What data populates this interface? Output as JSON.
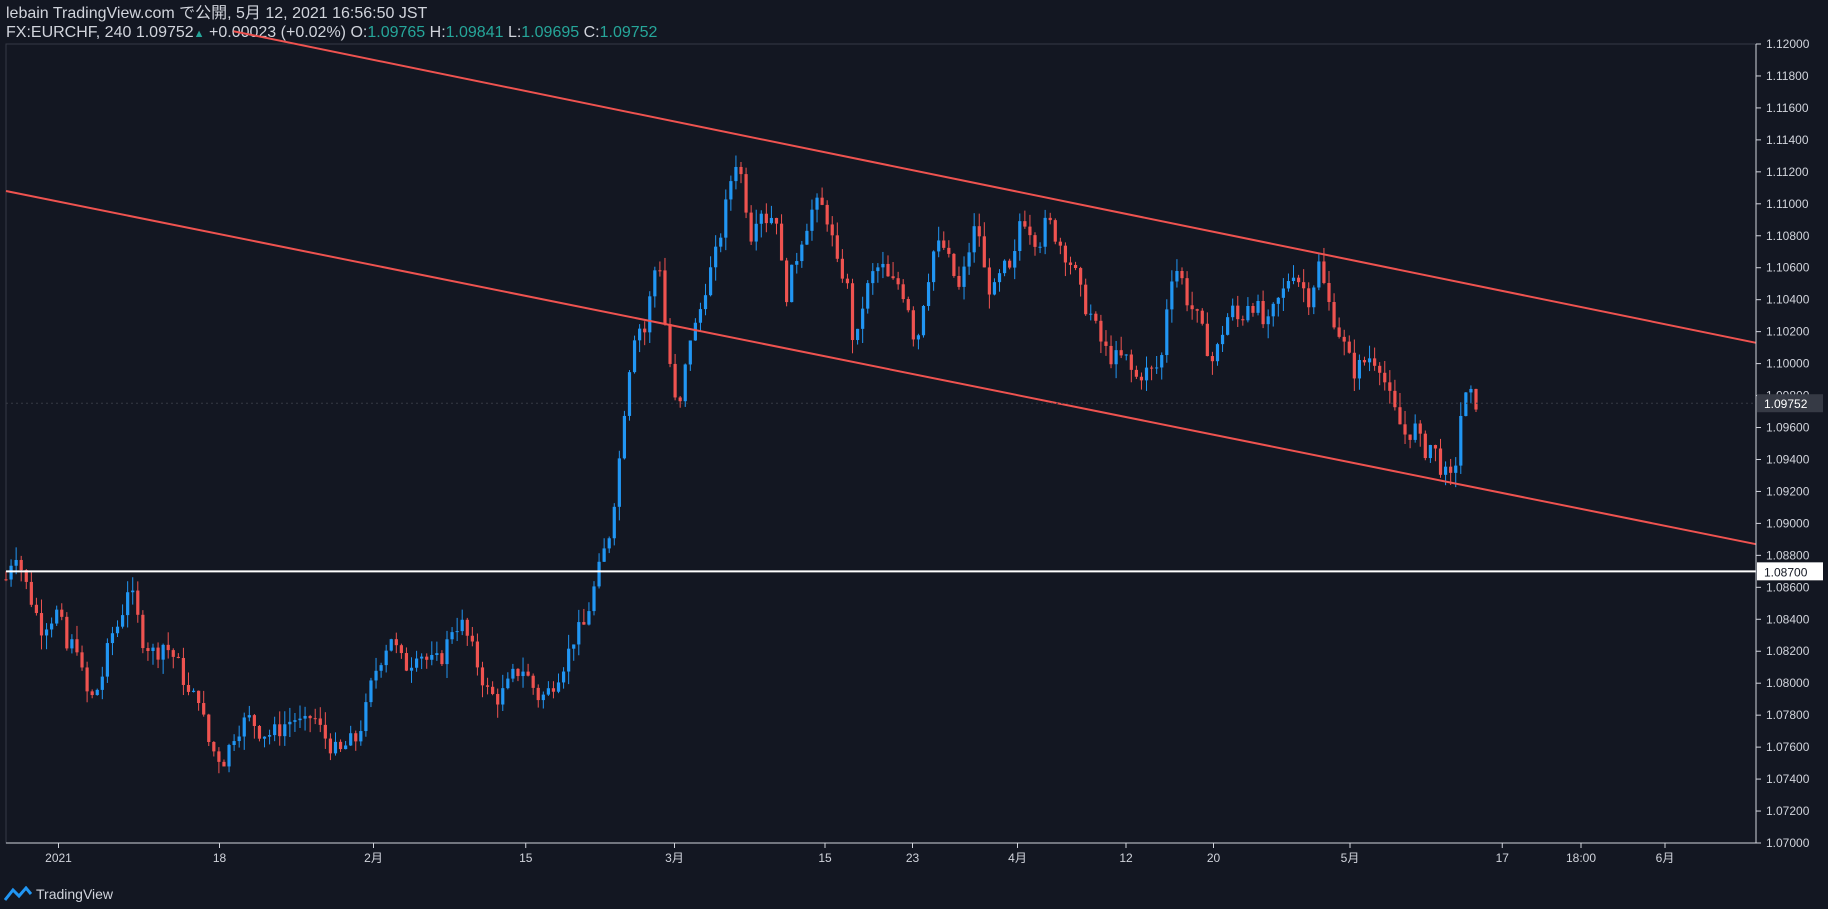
{
  "header": {
    "line1": "lebain TradingView.com で公開, 5月 12, 2021 16:56:50 JST",
    "symbol": "FX:EURCHF, 240",
    "last": "1.09752",
    "change": "+0.00023 (+0.02%)",
    "o_label": "O:",
    "o": "1.09765",
    "h_label": "H:",
    "h": "1.09841",
    "l_label": "L:",
    "l": "1.09695",
    "c_label": "C:",
    "c": "1.09752"
  },
  "footer": {
    "brand": "TradingView"
  },
  "chart_data": {
    "type": "candlestick",
    "ylim": [
      1.07,
      1.12
    ],
    "y_ticks": [
      1.07,
      1.072,
      1.074,
      1.076,
      1.078,
      1.08,
      1.082,
      1.084,
      1.086,
      1.088,
      1.09,
      1.092,
      1.094,
      1.096,
      1.098,
      1.1,
      1.102,
      1.104,
      1.106,
      1.108,
      1.11,
      1.112,
      1.114,
      1.116,
      1.118,
      1.12
    ],
    "y_tick_labels": [
      "1.07000",
      "1.07200",
      "1.07400",
      "1.07600",
      "1.07800",
      "1.08000",
      "1.08200",
      "1.08400",
      "1.08600",
      "1.08800",
      "1.09000",
      "1.09200",
      "1.09400",
      "1.09600",
      "1.09800",
      "1.10000",
      "1.10200",
      "1.10400",
      "1.10600",
      "1.10800",
      "1.11000",
      "1.11200",
      "1.11400",
      "1.11600",
      "1.11800",
      "1.12000"
    ],
    "x_ticks": [
      {
        "label": "2021",
        "t": 0.03
      },
      {
        "label": "18",
        "t": 0.122
      },
      {
        "label": "2月",
        "t": 0.21
      },
      {
        "label": "15",
        "t": 0.297
      },
      {
        "label": "3月",
        "t": 0.382
      },
      {
        "label": "15",
        "t": 0.468
      },
      {
        "label": "23",
        "t": 0.518
      },
      {
        "label": "4月",
        "t": 0.578
      },
      {
        "label": "12",
        "t": 0.64
      },
      {
        "label": "20",
        "t": 0.69
      },
      {
        "label": "5月",
        "t": 0.768
      },
      {
        "label": "17",
        "t": 0.855
      },
      {
        "label": "18:00",
        "t": 0.9
      },
      {
        "label": "6月",
        "t": 0.948
      }
    ],
    "last_price": 1.09752,
    "last_price_label": "1.09752",
    "horizontal_line": {
      "price": 1.087,
      "label": "1.08700",
      "color": "#ffffff"
    },
    "channel_lines": [
      {
        "color": "#ef5350",
        "from": [
          0.13,
          1.1208
        ],
        "to": [
          1.0,
          1.1013
        ]
      },
      {
        "color": "#ef5350",
        "from": [
          0.0,
          1.1108
        ],
        "to": [
          1.0,
          1.0887
        ]
      }
    ],
    "up_color": "#2196f3",
    "down_color": "#ef5350",
    "path": [
      [
        0.0,
        1.0865
      ],
      [
        0.005,
        1.0885
      ],
      [
        0.012,
        1.086
      ],
      [
        0.02,
        1.0835
      ],
      [
        0.03,
        1.0845
      ],
      [
        0.035,
        1.082
      ],
      [
        0.04,
        1.0828
      ],
      [
        0.045,
        1.0795
      ],
      [
        0.05,
        1.079
      ],
      [
        0.055,
        1.0805
      ],
      [
        0.06,
        1.083
      ],
      [
        0.065,
        1.0838
      ],
      [
        0.07,
        1.0862
      ],
      [
        0.073,
        1.085
      ],
      [
        0.078,
        1.0828
      ],
      [
        0.085,
        1.0818
      ],
      [
        0.09,
        1.0825
      ],
      [
        0.095,
        1.0818
      ],
      [
        0.1,
        1.0808
      ],
      [
        0.105,
        1.079
      ],
      [
        0.11,
        1.0793
      ],
      [
        0.115,
        1.0765
      ],
      [
        0.12,
        1.0755
      ],
      [
        0.125,
        1.0752
      ],
      [
        0.13,
        1.0768
      ],
      [
        0.135,
        1.0775
      ],
      [
        0.14,
        1.0778
      ],
      [
        0.145,
        1.077
      ],
      [
        0.15,
        1.0768
      ],
      [
        0.155,
        1.077
      ],
      [
        0.16,
        1.0775
      ],
      [
        0.165,
        1.0778
      ],
      [
        0.17,
        1.0772
      ],
      [
        0.175,
        1.0781
      ],
      [
        0.18,
        1.077
      ],
      [
        0.185,
        1.0762
      ],
      [
        0.19,
        1.0755
      ],
      [
        0.195,
        1.0762
      ],
      [
        0.2,
        1.0765
      ],
      [
        0.205,
        1.078
      ],
      [
        0.21,
        1.0805
      ],
      [
        0.215,
        1.0818
      ],
      [
        0.22,
        1.083
      ],
      [
        0.225,
        1.0815
      ],
      [
        0.23,
        1.081
      ],
      [
        0.235,
        1.0822
      ],
      [
        0.24,
        1.0815
      ],
      [
        0.245,
        1.0812
      ],
      [
        0.25,
        1.0818
      ],
      [
        0.255,
        1.0835
      ],
      [
        0.26,
        1.0838
      ],
      [
        0.265,
        1.0825
      ],
      [
        0.27,
        1.081
      ],
      [
        0.275,
        1.0795
      ],
      [
        0.28,
        1.079
      ],
      [
        0.285,
        1.0795
      ],
      [
        0.29,
        1.0805
      ],
      [
        0.295,
        1.081
      ],
      [
        0.3,
        1.08
      ],
      [
        0.305,
        1.079
      ],
      [
        0.31,
        1.0795
      ],
      [
        0.315,
        1.0805
      ],
      [
        0.32,
        1.0815
      ],
      [
        0.325,
        1.083
      ],
      [
        0.33,
        1.0835
      ],
      [
        0.335,
        1.0855
      ],
      [
        0.34,
        1.0875
      ],
      [
        0.345,
        1.0895
      ],
      [
        0.35,
        1.0935
      ],
      [
        0.355,
        1.099
      ],
      [
        0.36,
        1.1025
      ],
      [
        0.365,
        1.102
      ],
      [
        0.37,
        1.1055
      ],
      [
        0.373,
        1.107
      ],
      [
        0.376,
        1.103
      ],
      [
        0.38,
        1.0995
      ],
      [
        0.383,
        1.097
      ],
      [
        0.386,
        1.0975
      ],
      [
        0.39,
        1.1015
      ],
      [
        0.395,
        1.1025
      ],
      [
        0.4,
        1.105
      ],
      [
        0.405,
        1.1065
      ],
      [
        0.41,
        1.109
      ],
      [
        0.415,
        1.112
      ],
      [
        0.418,
        1.113
      ],
      [
        0.422,
        1.1105
      ],
      [
        0.426,
        1.108
      ],
      [
        0.43,
        1.11
      ],
      [
        0.435,
        1.109
      ],
      [
        0.44,
        1.1095
      ],
      [
        0.445,
        1.104
      ],
      [
        0.45,
        1.106
      ],
      [
        0.455,
        1.108
      ],
      [
        0.46,
        1.1095
      ],
      [
        0.465,
        1.11
      ],
      [
        0.47,
        1.109
      ],
      [
        0.475,
        1.106
      ],
      [
        0.48,
        1.1055
      ],
      [
        0.485,
        1.1005
      ],
      [
        0.49,
        1.104
      ],
      [
        0.495,
        1.1055
      ],
      [
        0.5,
        1.1062
      ],
      [
        0.505,
        1.105
      ],
      [
        0.51,
        1.105
      ],
      [
        0.515,
        1.104
      ],
      [
        0.52,
        1.101
      ],
      [
        0.525,
        1.1045
      ],
      [
        0.53,
        1.107
      ],
      [
        0.535,
        1.1075
      ],
      [
        0.54,
        1.106
      ],
      [
        0.545,
        1.1045
      ],
      [
        0.55,
        1.107
      ],
      [
        0.555,
        1.109
      ],
      [
        0.56,
        1.105
      ],
      [
        0.565,
        1.1045
      ],
      [
        0.57,
        1.106
      ],
      [
        0.575,
        1.1055
      ],
      [
        0.58,
        1.1095
      ],
      [
        0.585,
        1.1085
      ],
      [
        0.59,
        1.1075
      ],
      [
        0.595,
        1.109
      ],
      [
        0.6,
        1.108
      ],
      [
        0.605,
        1.107
      ],
      [
        0.61,
        1.106
      ],
      [
        0.615,
        1.104
      ],
      [
        0.62,
        1.103
      ],
      [
        0.625,
        1.1015
      ],
      [
        0.63,
        1.1005
      ],
      [
        0.635,
        1.1003
      ],
      [
        0.64,
        1.1003
      ],
      [
        0.645,
        1.099
      ],
      [
        0.65,
        1.0995
      ],
      [
        0.655,
        1.0995
      ],
      [
        0.66,
        1.1
      ],
      [
        0.665,
        1.1055
      ],
      [
        0.67,
        1.106
      ],
      [
        0.675,
        1.104
      ],
      [
        0.68,
        1.103
      ],
      [
        0.685,
        1.1015
      ],
      [
        0.69,
        1.1
      ],
      [
        0.695,
        1.102
      ],
      [
        0.7,
        1.1035
      ],
      [
        0.705,
        1.1025
      ],
      [
        0.71,
        1.104
      ],
      [
        0.715,
        1.1035
      ],
      [
        0.72,
        1.102
      ],
      [
        0.725,
        1.1035
      ],
      [
        0.73,
        1.1045
      ],
      [
        0.735,
        1.106
      ],
      [
        0.74,
        1.105
      ],
      [
        0.745,
        1.104
      ],
      [
        0.75,
        1.1063
      ],
      [
        0.755,
        1.104
      ],
      [
        0.76,
        1.1025
      ],
      [
        0.765,
        1.101
      ],
      [
        0.77,
        1.0995
      ],
      [
        0.775,
        1.1
      ],
      [
        0.78,
        1.1005
      ],
      [
        0.785,
        1.1
      ],
      [
        0.79,
        1.098
      ],
      [
        0.795,
        1.0965
      ],
      [
        0.8,
        1.0955
      ],
      [
        0.805,
        1.096
      ],
      [
        0.81,
        1.0945
      ],
      [
        0.815,
        1.095
      ],
      [
        0.82,
        1.0935
      ],
      [
        0.825,
        1.0925
      ],
      [
        0.828,
        1.0935
      ],
      [
        0.832,
        1.0975
      ],
      [
        0.836,
        1.098
      ],
      [
        0.84,
        1.0976
      ]
    ]
  }
}
